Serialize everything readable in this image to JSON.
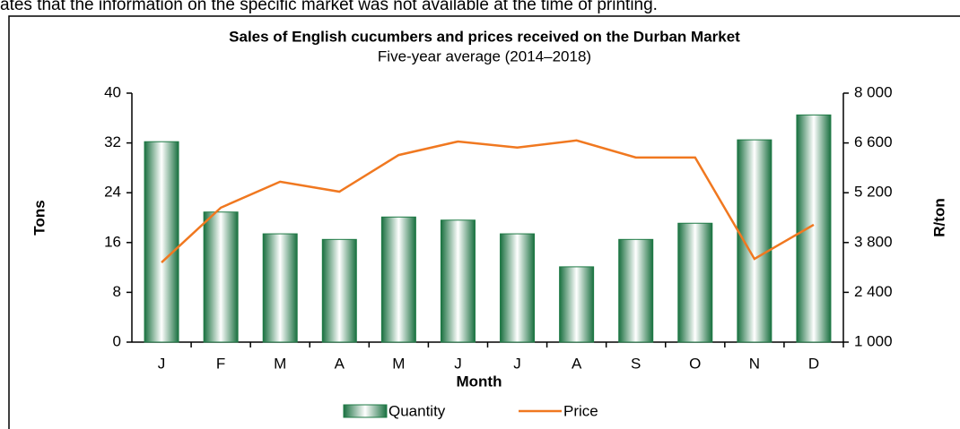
{
  "note": "ates that the information on the specific market was not available at the time of printing.",
  "chart_data": {
    "type": "bar-line",
    "title": "Sales of English cucumbers and prices received on the Durban Market",
    "subtitle": "Five-year average (2014–2018)",
    "x_label": "Month",
    "y_label": "Tons",
    "y2_label": "R/ton",
    "categories": [
      "J",
      "F",
      "M",
      "A",
      "M",
      "J",
      "J",
      "A",
      "S",
      "O",
      "N",
      "D"
    ],
    "series": [
      {
        "name": "Quantity",
        "type": "bar",
        "color": "#1e7a45",
        "values": [
          32.2,
          20.9,
          17.4,
          16.5,
          20.1,
          19.6,
          17.4,
          12.1,
          16.5,
          19.1,
          32.5,
          36.5
        ]
      },
      {
        "name": "Price",
        "type": "line",
        "axis": "y2",
        "color": "#f07820",
        "values": [
          3240,
          4780,
          5510,
          5230,
          6260,
          6640,
          6470,
          6670,
          6190,
          6190,
          3340,
          4300
        ]
      }
    ],
    "ylim": [
      0,
      40
    ],
    "yticks": [
      0,
      8,
      16,
      24,
      32,
      40
    ],
    "y2lim": [
      1000,
      8000
    ],
    "y2ticks": [
      {
        "value": 1000,
        "label": "1 000"
      },
      {
        "value": 2400,
        "label": "2 400"
      },
      {
        "value": 3800,
        "label": "3 800"
      },
      {
        "value": 5200,
        "label": "5 200"
      },
      {
        "value": 6600,
        "label": "6 600"
      },
      {
        "value": 8000,
        "label": "8 000"
      }
    ],
    "legend": "bottom",
    "grid": false
  }
}
